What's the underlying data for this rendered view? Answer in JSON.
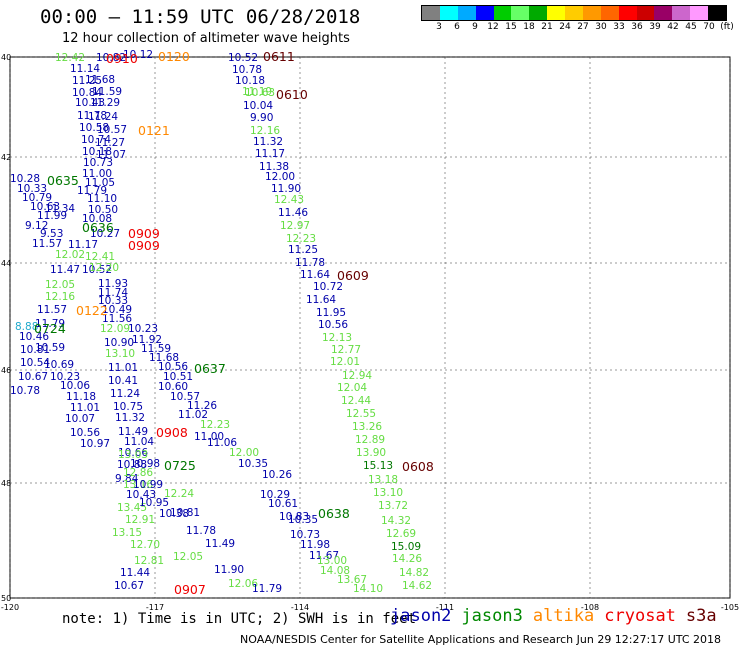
{
  "header": {
    "title": "00:00 – 11:59 UTC 06/28/2018",
    "subtitle": "12 hour collection of altimeter wave heights"
  },
  "color_scale": {
    "colors": [
      "#808080",
      "#00ffff",
      "#00aaff",
      "#0000ff",
      "#00cc00",
      "#66ff66",
      "#00aa00",
      "#ffff00",
      "#ffcc00",
      "#ff9900",
      "#ff6600",
      "#ff0000",
      "#cc0000",
      "#990066",
      "#cc66cc",
      "#ff99ff",
      "#000000"
    ],
    "labels": [
      "3",
      "6",
      "9",
      "12",
      "15",
      "18",
      "21",
      "24",
      "27",
      "30",
      "33",
      "36",
      "39",
      "42",
      "45",
      "70",
      "(ft)"
    ]
  },
  "axes": {
    "lat_labels": [
      "40",
      "42",
      "44",
      "46",
      "48",
      "50"
    ],
    "lon_labels": [
      "-120",
      "-117",
      "-114",
      "-111",
      "-108",
      "-105"
    ]
  },
  "track_color_roles": {
    "jason2": "#0000aa",
    "jason3": "#007700",
    "altika": "#ff8800",
    "cryosat": "#ee0000",
    "s3a": "#660000",
    "light": "#66dd44",
    "cyan": "#22aacc"
  },
  "time_labels": [
    {
      "text": "0910",
      "c": "cryosat"
    },
    {
      "text": "0120",
      "c": "altika"
    },
    {
      "text": "0611",
      "c": "s3a"
    },
    {
      "text": "0610",
      "c": "s3a"
    },
    {
      "text": "0121",
      "c": "altika"
    },
    {
      "text": "0635",
      "c": "jason3"
    },
    {
      "text": "0636",
      "c": "jason3"
    },
    {
      "text": "0909",
      "c": "cryosat"
    },
    {
      "text": "0909",
      "c": "cryosat"
    },
    {
      "text": "0609",
      "c": "s3a"
    },
    {
      "text": "0122",
      "c": "altika"
    },
    {
      "text": "0724",
      "c": "jason3"
    },
    {
      "text": "0637",
      "c": "jason3"
    },
    {
      "text": "0908",
      "c": "cryosat"
    },
    {
      "text": "0725",
      "c": "jason3"
    },
    {
      "text": "0608",
      "c": "s3a"
    },
    {
      "text": "0638",
      "c": "jason3"
    },
    {
      "text": "0907",
      "c": "cryosat"
    }
  ],
  "wave_heights": [
    {
      "v": "12.42",
      "c": "light"
    },
    {
      "v": "10.82",
      "c": "jason2"
    },
    {
      "v": "10.12",
      "c": "jason2"
    },
    {
      "v": "11.14",
      "c": "jason2"
    },
    {
      "v": "11.25",
      "c": "jason2"
    },
    {
      "v": "11.68",
      "c": "jason2"
    },
    {
      "v": "10.84",
      "c": "jason2"
    },
    {
      "v": "11.59",
      "c": "jason2"
    },
    {
      "v": "10.43",
      "c": "jason2"
    },
    {
      "v": "11.29",
      "c": "jason2"
    },
    {
      "v": "11.78",
      "c": "jason2"
    },
    {
      "v": "11.24",
      "c": "jason2"
    },
    {
      "v": "10.58",
      "c": "jason2"
    },
    {
      "v": "10.57",
      "c": "jason2"
    },
    {
      "v": "10.74",
      "c": "jason2"
    },
    {
      "v": "11.27",
      "c": "jason2"
    },
    {
      "v": "10.18",
      "c": "jason2"
    },
    {
      "v": "11.07",
      "c": "jason2"
    },
    {
      "v": "10.73",
      "c": "jason2"
    },
    {
      "v": "11.00",
      "c": "jason2"
    },
    {
      "v": "10.28",
      "c": "jason2"
    },
    {
      "v": "11.05",
      "c": "jason2"
    },
    {
      "v": "10.33",
      "c": "jason2"
    },
    {
      "v": "11.79",
      "c": "jason2"
    },
    {
      "v": "10.79",
      "c": "jason2"
    },
    {
      "v": "11.10",
      "c": "jason2"
    },
    {
      "v": "10.63",
      "c": "jason2"
    },
    {
      "v": "11.34",
      "c": "jason2"
    },
    {
      "v": "10.50",
      "c": "jason2"
    },
    {
      "v": "11.99",
      "c": "jason2"
    },
    {
      "v": "10.08",
      "c": "jason2"
    },
    {
      "v": "9.12",
      "c": "jason2"
    },
    {
      "v": "9.53",
      "c": "jason2"
    },
    {
      "v": "10.27",
      "c": "jason2"
    },
    {
      "v": "11.57",
      "c": "jason2"
    },
    {
      "v": "11.17",
      "c": "jason2"
    },
    {
      "v": "12.02",
      "c": "light"
    },
    {
      "v": "12.41",
      "c": "light"
    },
    {
      "v": "11.47",
      "c": "jason2"
    },
    {
      "v": "10.52",
      "c": "jason2"
    },
    {
      "v": "12.20",
      "c": "light"
    },
    {
      "v": "12.05",
      "c": "light"
    },
    {
      "v": "11.93",
      "c": "jason2"
    },
    {
      "v": "12.16",
      "c": "light"
    },
    {
      "v": "11.74",
      "c": "jason2"
    },
    {
      "v": "10.33",
      "c": "jason2"
    },
    {
      "v": "11.57",
      "c": "jason2"
    },
    {
      "v": "10.49",
      "c": "jason2"
    },
    {
      "v": "11.56",
      "c": "jason2"
    },
    {
      "v": "8.88",
      "c": "cyan"
    },
    {
      "v": "11.79",
      "c": "jason2"
    },
    {
      "v": "12.09",
      "c": "light"
    },
    {
      "v": "10.23",
      "c": "jason2"
    },
    {
      "v": "10.46",
      "c": "jason2"
    },
    {
      "v": "10.81",
      "c": "jason2"
    },
    {
      "v": "11.92",
      "c": "jason2"
    },
    {
      "v": "10.90",
      "c": "jason2"
    },
    {
      "v": "10.59",
      "c": "jason2"
    },
    {
      "v": "13.10",
      "c": "light"
    },
    {
      "v": "11.59",
      "c": "jason2"
    },
    {
      "v": "10.54",
      "c": "jason2"
    },
    {
      "v": "10.69",
      "c": "jason2"
    },
    {
      "v": "11.01",
      "c": "jason2"
    },
    {
      "v": "11.68",
      "c": "jason2"
    },
    {
      "v": "10.67",
      "c": "jason2"
    },
    {
      "v": "10.23",
      "c": "jason2"
    },
    {
      "v": "10.41",
      "c": "jason2"
    },
    {
      "v": "10.56",
      "c": "jason2"
    },
    {
      "v": "10.51",
      "c": "jason2"
    },
    {
      "v": "10.78",
      "c": "jason2"
    },
    {
      "v": "10.06",
      "c": "jason2"
    },
    {
      "v": "11.18",
      "c": "jason2"
    },
    {
      "v": "11.24",
      "c": "jason2"
    },
    {
      "v": "10.60",
      "c": "jason2"
    },
    {
      "v": "10.57",
      "c": "jason2"
    },
    {
      "v": "11.01",
      "c": "jason2"
    },
    {
      "v": "10.75",
      "c": "jason2"
    },
    {
      "v": "11.26",
      "c": "jason2"
    },
    {
      "v": "10.07",
      "c": "jason2"
    },
    {
      "v": "11.32",
      "c": "jason2"
    },
    {
      "v": "11.02",
      "c": "jason2"
    },
    {
      "v": "10.56",
      "c": "jason2"
    },
    {
      "v": "11.49",
      "c": "jason2"
    },
    {
      "v": "12.23",
      "c": "light"
    },
    {
      "v": "10.97",
      "c": "jason2"
    },
    {
      "v": "11.04",
      "c": "jason2"
    },
    {
      "v": "11.00",
      "c": "jason2"
    },
    {
      "v": "10.66",
      "c": "jason2"
    },
    {
      "v": "11.06",
      "c": "jason2"
    },
    {
      "v": "10.88",
      "c": "jason2"
    },
    {
      "v": "13.03",
      "c": "light"
    },
    {
      "v": "12.00",
      "c": "light"
    },
    {
      "v": "10.98",
      "c": "jason2"
    },
    {
      "v": "10.35",
      "c": "jason2"
    },
    {
      "v": "9.84",
      "c": "jason2"
    },
    {
      "v": "12.86",
      "c": "light"
    },
    {
      "v": "10.26",
      "c": "jason2"
    },
    {
      "v": "13.16",
      "c": "light"
    },
    {
      "v": "10.99",
      "c": "jason2"
    },
    {
      "v": "10.43",
      "c": "jason2"
    },
    {
      "v": "12.24",
      "c": "light"
    },
    {
      "v": "10.29",
      "c": "jason2"
    },
    {
      "v": "13.45",
      "c": "light"
    },
    {
      "v": "10.95",
      "c": "jason2"
    },
    {
      "v": "10.61",
      "c": "jason2"
    },
    {
      "v": "12.91",
      "c": "light"
    },
    {
      "v": "10.38",
      "c": "jason2"
    },
    {
      "v": "10.83",
      "c": "jason2"
    },
    {
      "v": "13.15",
      "c": "light"
    },
    {
      "v": "10.81",
      "c": "jason2"
    },
    {
      "v": "10.35",
      "c": "jason2"
    },
    {
      "v": "12.70",
      "c": "light"
    },
    {
      "v": "11.78",
      "c": "jason2"
    },
    {
      "v": "10.73",
      "c": "jason2"
    },
    {
      "v": "12.81",
      "c": "light"
    },
    {
      "v": "11.49",
      "c": "jason2"
    },
    {
      "v": "11.98",
      "c": "jason2"
    },
    {
      "v": "12.05",
      "c": "light"
    },
    {
      "v": "11.67",
      "c": "jason2"
    },
    {
      "v": "13.00",
      "c": "light"
    },
    {
      "v": "11.44",
      "c": "jason2"
    },
    {
      "v": "11.90",
      "c": "jason2"
    },
    {
      "v": "14.08",
      "c": "light"
    },
    {
      "v": "10.67",
      "c": "jason2"
    },
    {
      "v": "12.06",
      "c": "light"
    },
    {
      "v": "13.67",
      "c": "light"
    },
    {
      "v": "11.79",
      "c": "jason2"
    },
    {
      "v": "14.10",
      "c": "light"
    },
    {
      "v": "10.52",
      "c": "jason2"
    },
    {
      "v": "10.78",
      "c": "jason2"
    },
    {
      "v": "10.18",
      "c": "jason2"
    },
    {
      "v": "11.19",
      "c": "light"
    },
    {
      "v": "10.63",
      "c": "light"
    },
    {
      "v": "10.04",
      "c": "jason2"
    },
    {
      "v": "9.90",
      "c": "jason2"
    },
    {
      "v": "12.16",
      "c": "light"
    },
    {
      "v": "11.32",
      "c": "jason2"
    },
    {
      "v": "11.17",
      "c": "jason2"
    },
    {
      "v": "11.38",
      "c": "jason2"
    },
    {
      "v": "12.00",
      "c": "jason2"
    },
    {
      "v": "11.90",
      "c": "jason2"
    },
    {
      "v": "12.43",
      "c": "light"
    },
    {
      "v": "11.46",
      "c": "jason2"
    },
    {
      "v": "12.97",
      "c": "light"
    },
    {
      "v": "12.23",
      "c": "light"
    },
    {
      "v": "11.25",
      "c": "jason2"
    },
    {
      "v": "11.78",
      "c": "jason2"
    },
    {
      "v": "11.64",
      "c": "jason2"
    },
    {
      "v": "10.72",
      "c": "jason2"
    },
    {
      "v": "11.64",
      "c": "jason2"
    },
    {
      "v": "11.95",
      "c": "jason2"
    },
    {
      "v": "10.56",
      "c": "jason2"
    },
    {
      "v": "12.13",
      "c": "light"
    },
    {
      "v": "12.77",
      "c": "light"
    },
    {
      "v": "12.01",
      "c": "light"
    },
    {
      "v": "12.94",
      "c": "light"
    },
    {
      "v": "12.04",
      "c": "light"
    },
    {
      "v": "12.44",
      "c": "light"
    },
    {
      "v": "12.55",
      "c": "light"
    },
    {
      "v": "13.26",
      "c": "light"
    },
    {
      "v": "12.89",
      "c": "light"
    },
    {
      "v": "13.90",
      "c": "light"
    },
    {
      "v": "15.13",
      "c": "jason3"
    },
    {
      "v": "13.18",
      "c": "light"
    },
    {
      "v": "13.10",
      "c": "light"
    },
    {
      "v": "13.72",
      "c": "light"
    },
    {
      "v": "14.32",
      "c": "light"
    },
    {
      "v": "12.69",
      "c": "light"
    },
    {
      "v": "15.09",
      "c": "jason3"
    },
    {
      "v": "14.26",
      "c": "light"
    },
    {
      "v": "14.82",
      "c": "light"
    },
    {
      "v": "14.62",
      "c": "light"
    }
  ],
  "footer": {
    "note": "note: 1) Time is in UTC; 2) SWH is in feet",
    "legend": [
      {
        "name": "jason2",
        "color": "#0000aa"
      },
      {
        "name": "jason3",
        "color": "#008800"
      },
      {
        "name": "altika",
        "color": "#ff8800"
      },
      {
        "name": "cryosat",
        "color": "#ee0000"
      },
      {
        "name": "s3a",
        "color": "#660000"
      }
    ],
    "credit": "NOAA/NESDIS Center for Satellite Applications and Research    Jun 29 12:27:17 UTC 2018"
  }
}
